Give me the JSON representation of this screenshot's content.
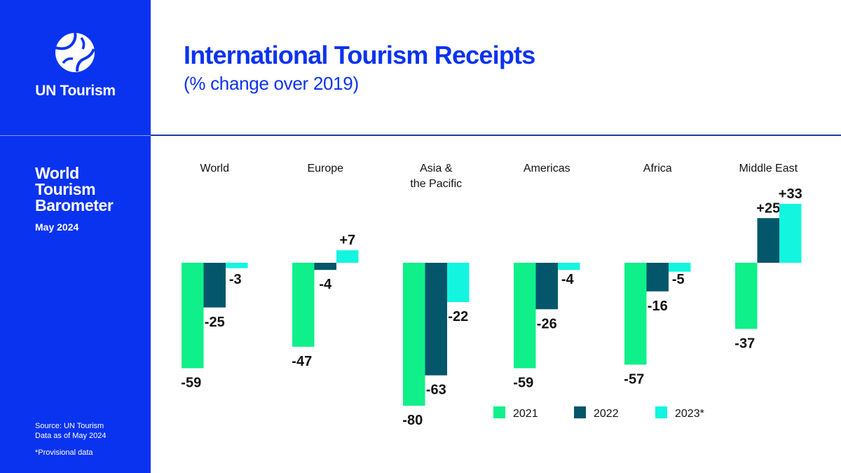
{
  "brand": {
    "name": "UN Tourism"
  },
  "sidebar": {
    "report_title": "World Tourism Barometer",
    "report_date": "May 2024",
    "source_line1": "Source: UN Tourism",
    "source_line2": "Data as of May 2024",
    "note": "*Provisional data"
  },
  "colors": {
    "brand_blue": "#0a33f0",
    "s2021": "#0ff08a",
    "s2022": "#04566b",
    "s2023": "#14f5e0"
  },
  "chart_data": {
    "type": "bar",
    "title": "International Tourism Receipts",
    "subtitle": "(% change over 2019)",
    "categories": [
      "World",
      "Europe",
      "Asia & the Pacific",
      "Americas",
      "Africa",
      "Middle East"
    ],
    "category_lines": [
      [
        "World"
      ],
      [
        "Europe"
      ],
      [
        "Asia &",
        "the Pacific"
      ],
      [
        "Americas"
      ],
      [
        "Africa"
      ],
      [
        "Middle East"
      ]
    ],
    "series": [
      {
        "name": "2021",
        "values": [
          -59,
          -47,
          -80,
          -59,
          -57,
          -37
        ],
        "labels": [
          "-59",
          "-47",
          "-80",
          "-59",
          "-57",
          "-37"
        ]
      },
      {
        "name": "2022",
        "values": [
          -25,
          -4,
          -63,
          -26,
          -16,
          25
        ],
        "labels": [
          "-25",
          "-4",
          "-63",
          "-26",
          "-16",
          "+25"
        ]
      },
      {
        "name": "2023*",
        "values": [
          -3,
          7,
          -22,
          -4,
          -5,
          33
        ],
        "labels": [
          "-3",
          "+7",
          "-22",
          "-4",
          "-5",
          "+33"
        ]
      }
    ],
    "legend_position": "bottom-right",
    "grid": false
  }
}
